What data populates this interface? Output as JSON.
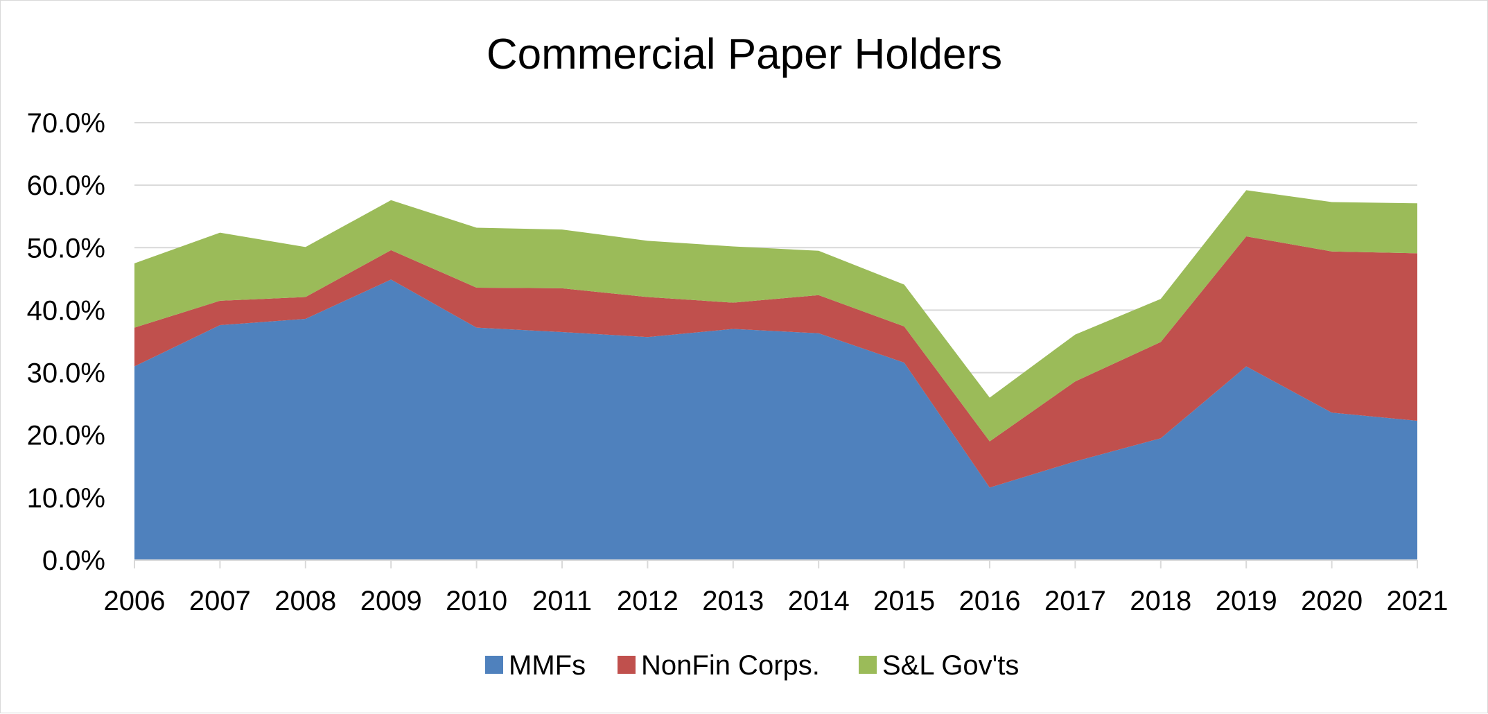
{
  "chart_data": {
    "type": "area",
    "stacked": true,
    "title": "Commercial Paper Holders",
    "xlabel": "",
    "ylabel": "",
    "categories": [
      "2006",
      "2007",
      "2008",
      "2009",
      "2010",
      "2011",
      "2012",
      "2013",
      "2014",
      "2015",
      "2016",
      "2017",
      "2018",
      "2019",
      "2020",
      "2021"
    ],
    "ylim": [
      0,
      70
    ],
    "y_ticks": [
      0,
      10,
      20,
      30,
      40,
      50,
      60,
      70
    ],
    "y_tick_labels": [
      "0.0%",
      "10.0%",
      "20.0%",
      "30.0%",
      "40.0%",
      "50.0%",
      "60.0%",
      "70.0%"
    ],
    "grid": true,
    "legend_position": "bottom",
    "series": [
      {
        "name": "MMFs",
        "color": "#4f81bd",
        "values": [
          31.0,
          37.6,
          38.6,
          44.9,
          37.2,
          36.5,
          35.7,
          37.0,
          36.3,
          31.6,
          11.6,
          15.8,
          19.5,
          31.0,
          23.6,
          22.3
        ]
      },
      {
        "name": "NonFin Corps.",
        "color": "#c0504d",
        "values": [
          6.2,
          3.9,
          3.5,
          4.7,
          6.4,
          7.0,
          6.4,
          4.2,
          6.1,
          5.8,
          7.4,
          12.8,
          15.4,
          20.8,
          25.8,
          26.8
        ]
      },
      {
        "name": "S&L Gov'ts",
        "color": "#9bbb59",
        "values": [
          10.3,
          10.9,
          8.0,
          8.0,
          9.6,
          9.4,
          9.0,
          9.0,
          7.1,
          6.7,
          7.0,
          7.5,
          6.9,
          7.4,
          7.9,
          8.0
        ]
      }
    ]
  }
}
